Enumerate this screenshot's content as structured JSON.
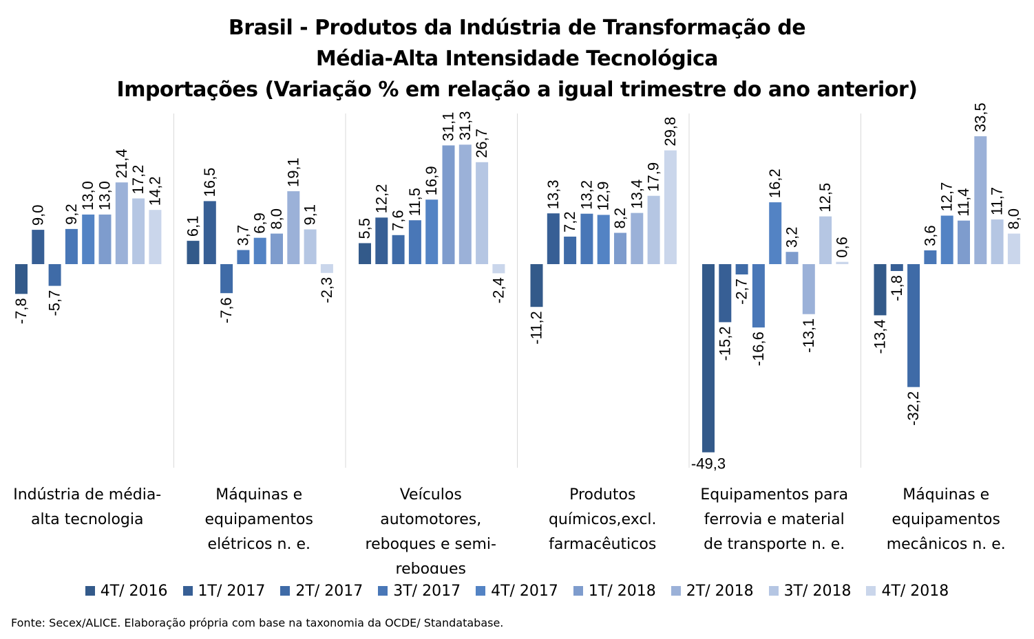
{
  "chart_data": {
    "type": "bar",
    "title": [
      "Brasil - Produtos da Indústria de Transformação de",
      "Média-Alta Intensidade Tecnológica",
      "Importações (Variação % em relação a igual trimestre do ano anterior)"
    ],
    "categories": [
      [
        "Indústria de média-",
        "alta tecnologia"
      ],
      [
        "Máquinas e",
        "equipamentos",
        "elétricos n. e."
      ],
      [
        "Veículos",
        "automotores,",
        "reboques e semi-",
        "reboques"
      ],
      [
        "Produtos",
        "químicos,excl.",
        "farmacêuticos"
      ],
      [
        "Equipamentos para",
        "ferrovia e material",
        "de transporte n. e."
      ],
      [
        "Máquinas e",
        "equipamentos",
        "mecânicos  n. e."
      ]
    ],
    "series": [
      {
        "name": "4T/ 2016",
        "color": "#335a8a",
        "values": [
          -7.8,
          6.1,
          5.5,
          -11.2,
          -49.3,
          -13.4
        ]
      },
      {
        "name": "1T/ 2017",
        "color": "#375f95",
        "values": [
          9.0,
          16.5,
          12.2,
          13.3,
          -15.2,
          -1.8
        ]
      },
      {
        "name": "2T/ 2017",
        "color": "#3f6ba7",
        "values": [
          -5.7,
          -7.6,
          7.6,
          7.2,
          -2.7,
          -32.2
        ]
      },
      {
        "name": "3T/ 2017",
        "color": "#4977b7",
        "values": [
          9.2,
          3.7,
          11.5,
          13.2,
          -16.6,
          3.6
        ]
      },
      {
        "name": "4T/ 2017",
        "color": "#5383c4",
        "values": [
          13.0,
          6.9,
          16.9,
          12.9,
          16.2,
          12.7
        ]
      },
      {
        "name": "1T/ 2018",
        "color": "#7e9ccd",
        "values": [
          13.0,
          8.0,
          31.1,
          8.2,
          3.2,
          11.4
        ]
      },
      {
        "name": "2T/ 2018",
        "color": "#9bb1d8",
        "values": [
          21.4,
          19.1,
          31.3,
          13.4,
          -13.1,
          33.5
        ]
      },
      {
        "name": "3T/ 2018",
        "color": "#b5c6e3",
        "values": [
          17.2,
          9.1,
          26.7,
          17.9,
          12.5,
          11.7
        ]
      },
      {
        "name": "4T/ 2018",
        "color": "#cad6eb",
        "values": [
          14.2,
          -2.3,
          -2.4,
          29.8,
          0.6,
          8.0
        ]
      }
    ],
    "data_labels": [
      [
        "-7,8",
        "6,1",
        "5,5",
        "-11,2",
        "-49,3",
        "-13,4"
      ],
      [
        "9,0",
        "16,5",
        "12,2",
        "13,3",
        "-15,2",
        "-1,8"
      ],
      [
        "-5,7",
        "-7,6",
        "7,6",
        "7,2",
        "-2,7",
        "-32,2"
      ],
      [
        "9,2",
        "3,7",
        "11,5",
        "13,2",
        "-16,6",
        "3,6"
      ],
      [
        "13,0",
        "6,9",
        "16,9",
        "12,9",
        "16,2",
        "12,7"
      ],
      [
        "13,0",
        "8,0",
        "31,1",
        "8,2",
        "3,2",
        "11,4"
      ],
      [
        "21,4",
        "19,1",
        "31,3",
        "13,4",
        "-13,1",
        "33,5"
      ],
      [
        "17,2",
        "9,1",
        "26,7",
        "17,9",
        "12,5",
        "11,7"
      ],
      [
        "14,2",
        "-2,3",
        "-2,4",
        "29,8",
        "0,6",
        "8,0"
      ]
    ],
    "ylim": [
      -52,
      40
    ],
    "grid": false,
    "legend_position": "bottom",
    "source_note": "Fonte: Secex/ALICE. Elaboração própria com base na taxonomia da OCDE/ Standatabase."
  }
}
